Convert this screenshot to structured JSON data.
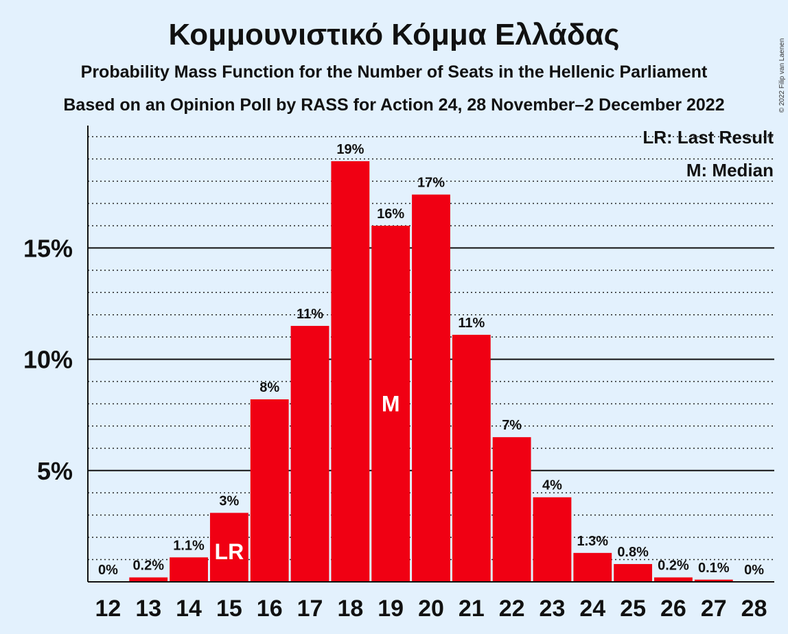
{
  "chart_data": {
    "type": "bar",
    "title": "Κομμουνιστικό Κόμμα Ελλάδας",
    "subtitle": "Probability Mass Function for the Number of Seats in the Hellenic Parliament",
    "subtitle2": "Based on an Opinion Poll by RASS for Action 24, 28 November–2 December 2022",
    "copyright": "© 2022 Filip van Laenen",
    "categories": [
      "12",
      "13",
      "14",
      "15",
      "16",
      "17",
      "18",
      "19",
      "20",
      "21",
      "22",
      "23",
      "24",
      "25",
      "26",
      "27",
      "28"
    ],
    "values": [
      0,
      0.2,
      1.1,
      3.1,
      8.2,
      11.5,
      18.9,
      16.0,
      17.4,
      11.1,
      6.5,
      3.8,
      1.3,
      0.8,
      0.2,
      0.1,
      0
    ],
    "value_labels": [
      "0%",
      "0.2%",
      "1.1%",
      "3%",
      "8%",
      "11%",
      "19%",
      "16%",
      "17%",
      "11%",
      "7%",
      "4%",
      "1.3%",
      "0.8%",
      "0.2%",
      "0.1%",
      "0%"
    ],
    "ylim": [
      0,
      20.5
    ],
    "yticks": [
      {
        "value": 5,
        "label": "5%"
      },
      {
        "value": 10,
        "label": "10%"
      },
      {
        "value": 15,
        "label": "15%"
      }
    ],
    "minor_grid_step": 1,
    "bar_color": "#f00013",
    "background": "#e3f1fd",
    "markers": [
      {
        "category": "15",
        "label": "LR"
      },
      {
        "category": "19",
        "label": "M"
      }
    ],
    "legend": {
      "position": "top-right",
      "entries": [
        "LR: Last Result",
        "M: Median"
      ]
    }
  }
}
